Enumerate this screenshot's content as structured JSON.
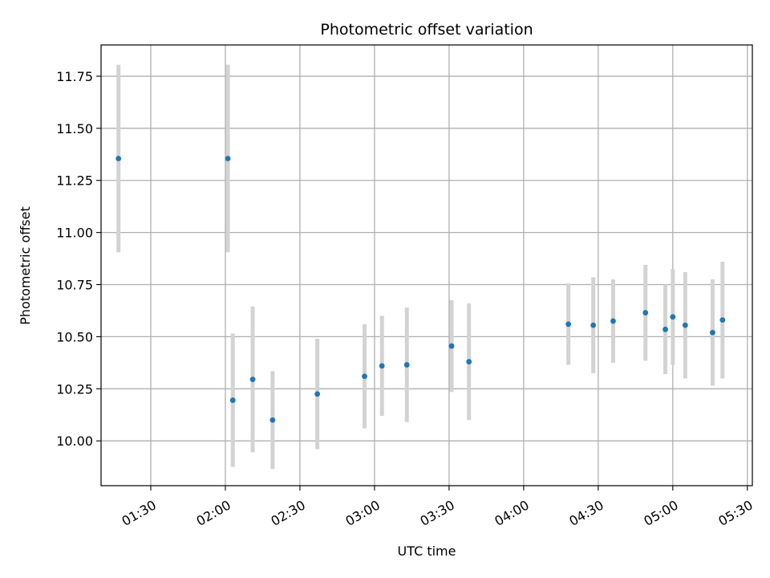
{
  "chart_data": {
    "type": "scatter",
    "title": "Photometric offset variation",
    "xlabel": "UTC time",
    "ylabel": "Photometric offset",
    "grid": true,
    "xlim": [
      "01:10",
      "05:32"
    ],
    "ylim": [
      9.785,
      11.9
    ],
    "x_ticks": [
      "01:30",
      "02:00",
      "02:30",
      "03:00",
      "03:30",
      "04:00",
      "04:30",
      "05:00",
      "05:30"
    ],
    "y_ticks": [
      "10.00",
      "10.25",
      "10.50",
      "10.75",
      "11.00",
      "11.25",
      "11.50",
      "11.75"
    ],
    "marker_color": "#1f77b4",
    "errorbar_color": "#d3d3d3",
    "points": [
      {
        "time": "01:17",
        "value": 11.355,
        "error": 0.45
      },
      {
        "time": "02:01",
        "value": 11.355,
        "error": 0.45
      },
      {
        "time": "02:03",
        "value": 10.195,
        "error": 0.32
      },
      {
        "time": "02:11",
        "value": 10.295,
        "error": 0.35
      },
      {
        "time": "02:19",
        "value": 10.1,
        "error": 0.235
      },
      {
        "time": "02:37",
        "value": 10.225,
        "error": 0.265
      },
      {
        "time": "02:56",
        "value": 10.31,
        "error": 0.25
      },
      {
        "time": "03:03",
        "value": 10.36,
        "error": 0.24
      },
      {
        "time": "03:13",
        "value": 10.365,
        "error": 0.275
      },
      {
        "time": "03:31",
        "value": 10.455,
        "error": 0.22
      },
      {
        "time": "03:38",
        "value": 10.38,
        "error": 0.28
      },
      {
        "time": "04:18",
        "value": 10.56,
        "error": 0.195
      },
      {
        "time": "04:28",
        "value": 10.555,
        "error": 0.23
      },
      {
        "time": "04:36",
        "value": 10.575,
        "error": 0.2
      },
      {
        "time": "04:49",
        "value": 10.615,
        "error": 0.23
      },
      {
        "time": "04:57",
        "value": 10.535,
        "error": 0.215
      },
      {
        "time": "05:00",
        "value": 10.595,
        "error": 0.23
      },
      {
        "time": "05:05",
        "value": 10.555,
        "error": 0.255
      },
      {
        "time": "05:16",
        "value": 10.52,
        "error": 0.255
      },
      {
        "time": "05:20",
        "value": 10.58,
        "error": 0.28
      }
    ]
  }
}
